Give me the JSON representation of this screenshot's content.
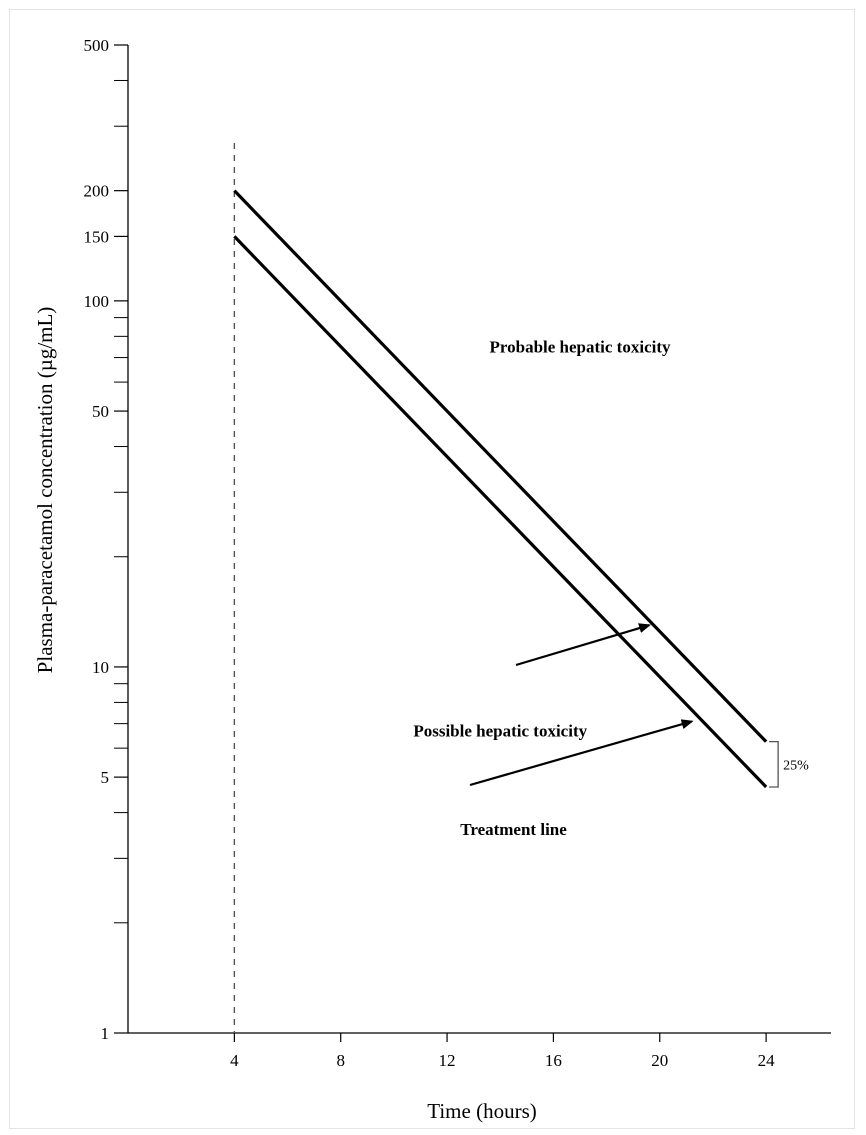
{
  "chart_data": {
    "type": "line",
    "xlabel": "Time (hours)",
    "ylabel": "Plasma-paracetamol concentration (µg/mL)",
    "yscale": "log",
    "xlim": [
      0,
      25.5
    ],
    "ylim": [
      1,
      500
    ],
    "x_ticks": [
      4,
      8,
      12,
      16,
      20,
      24
    ],
    "y_tick_labels": [
      1,
      5,
      10,
      50,
      100,
      150,
      200,
      500
    ],
    "y_minor_ticks": [
      2,
      3,
      4,
      6,
      7,
      8,
      9,
      20,
      30,
      40,
      60,
      70,
      80,
      90,
      300,
      400
    ],
    "series": [
      {
        "name": "Possible hepatic toxicity",
        "x": [
          4,
          24
        ],
        "y": [
          200,
          6.25
        ]
      },
      {
        "name": "Treatment line",
        "x": [
          4,
          24
        ],
        "y": [
          150,
          4.7
        ]
      }
    ],
    "reference_line": {
      "x": 4,
      "style": "dashed"
    },
    "annotations": [
      {
        "text": "Probable hepatic toxicity",
        "x": 17,
        "y": 75,
        "arrow": false
      },
      {
        "text": "Possible hepatic toxicity",
        "x": 14,
        "y": 7.8,
        "arrow_to": [
          19.6,
          13
        ]
      },
      {
        "text": "Treatment line",
        "x": 14.5,
        "y": 4.3,
        "arrow_to": [
          21.2,
          7.1
        ]
      },
      {
        "text": "25%",
        "x": 25.6,
        "y": 5.5,
        "bracket": [
          4.7,
          6.25
        ]
      }
    ],
    "colors": {
      "line": "#000000",
      "axis": "#000000",
      "dashed": "#555555"
    }
  }
}
